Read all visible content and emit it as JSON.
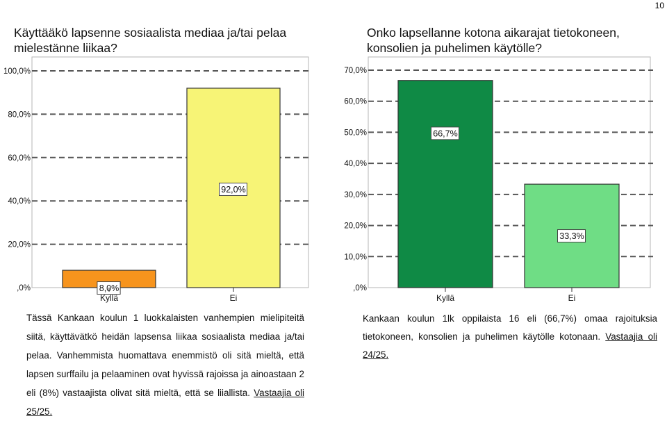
{
  "page": {
    "number": "10"
  },
  "charts": {
    "left": {
      "title": "Käyttääkö lapsenne sosiaalista mediaa ja/tai pelaa mielestänne liikaa?",
      "description": "Tässä Kankaan koulun 1 luokkalaisten vanhempien mielipiteitä siitä, käyttävätkö heidän lapsensa liikaa sosiaalista mediaa ja/tai pelaa. Vanhemmista huomattava enemmistö oli sitä mieltä, että lapsen surffailu ja pelaaminen ovat hyvissä rajoissa ja ainoastaan 2 eli (8%) vastaajista olivat sitä mieltä, että se liiallista.",
      "respondents": "Vastaajia oli 25/25."
    },
    "right": {
      "title": "Onko lapsellanne kotona aikarajat tietokoneen, konsolien ja puhelimen käytölle?",
      "description": "Kankaan koulun 1lk oppilaista 16 eli (66,7%) omaa rajoituksia tietokoneen, konsolien ja puhelimen käytölle kotonaan.",
      "respondents": "Vastaajia oli 24/25."
    }
  },
  "chart_data": [
    {
      "type": "bar",
      "title": "Käyttääkö lapsenne sosiaalista mediaa ja/tai pelaa mielestänne liikaa?",
      "categories": [
        "Kyllä",
        "Ei"
      ],
      "values": [
        8.0,
        92.0
      ],
      "value_labels": [
        "8,0%",
        "92,0%"
      ],
      "colors": [
        "#f7941d",
        "#f7f476"
      ],
      "yticks": [
        0,
        20,
        40,
        60,
        80,
        100
      ],
      "ytick_labels": [
        ",0%",
        "20,0%",
        "40,0%",
        "60,0%",
        "80,0%",
        "100,0%"
      ],
      "ylim": [
        0,
        100
      ],
      "grid": true,
      "xlabel": "",
      "ylabel": ""
    },
    {
      "type": "bar",
      "title": "Onko lapsellanne kotona aikarajat tietokoneen, konsolien ja puhelimen käytölle?",
      "categories": [
        "Kyllä",
        "Ei"
      ],
      "values": [
        66.7,
        33.3
      ],
      "value_labels": [
        "66,7%",
        "33,3%"
      ],
      "colors": [
        "#0f8a45",
        "#6fdd85"
      ],
      "yticks": [
        0,
        10,
        20,
        30,
        40,
        50,
        60,
        70
      ],
      "ytick_labels": [
        ",0%",
        "10,0%",
        "20,0%",
        "30,0%",
        "40,0%",
        "50,0%",
        "60,0%",
        "70,0%"
      ],
      "ylim": [
        0,
        70
      ],
      "grid": true,
      "xlabel": "",
      "ylabel": ""
    }
  ]
}
